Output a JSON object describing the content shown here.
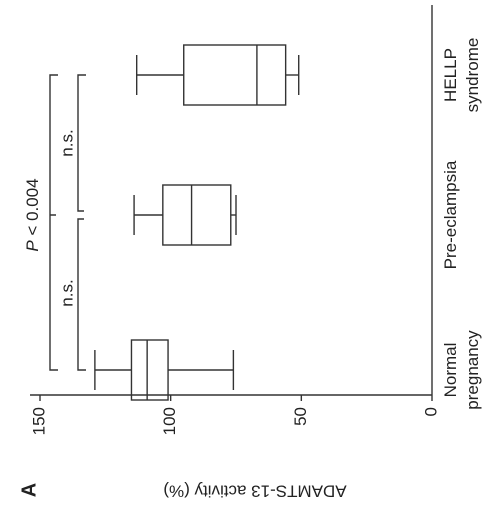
{
  "chart_data": {
    "type": "box",
    "panel_label": "A",
    "ylabel": "ADAMTS-13 activity (%)",
    "categories": [
      "Normal pregnancy",
      "Pre-eclampsia",
      "HELLP syndrome"
    ],
    "boxes": [
      {
        "min": 76,
        "q1": 101,
        "median": 109,
        "q3": 115,
        "max": 129
      },
      {
        "min": 75,
        "q1": 77,
        "median": 92,
        "q3": 103,
        "max": 114
      },
      {
        "min": 51,
        "q1": 56,
        "median": 67,
        "q3": 95,
        "max": 113
      }
    ],
    "ylim": [
      0,
      150
    ],
    "yticks": [
      0,
      50,
      100,
      150
    ],
    "annotations": [
      "P < 0.004",
      "n.s.",
      "n.s."
    ]
  }
}
